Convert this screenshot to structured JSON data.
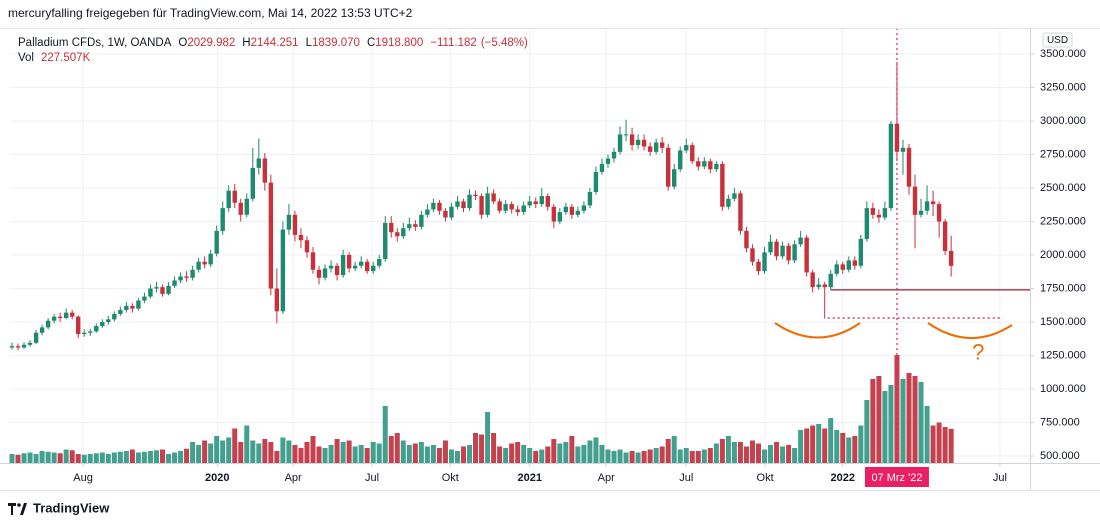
{
  "chart_data": {
    "type": "candlestick",
    "header": "mercuryfalling freigegeben für TradingView.com, Mai 14, 2022 13:53 UTC+2",
    "legend": {
      "symbol": "Palladium CFDs, 1W, OANDA",
      "fields": [
        {
          "key": "O",
          "value": 2029.982,
          "label": "2029.982"
        },
        {
          "key": "H",
          "value": 2144.251,
          "label": "2144.251"
        },
        {
          "key": "L",
          "value": 1839.07,
          "label": "1839.070"
        },
        {
          "key": "C",
          "value": 1918.8,
          "label": "1918.800"
        }
      ],
      "change": {
        "value": -111.182,
        "label": "−111.182"
      },
      "change_pct": {
        "value": -5.48,
        "label": "(−5.48%)"
      },
      "vol_key": "Vol",
      "vol_value": {
        "value": 227507,
        "label": "227.507K"
      }
    },
    "currency": "USD",
    "watermark": "TradingView",
    "up_color": "#1e8a6e",
    "down_color": "#c8303b",
    "volume_up_color": "#43a08f",
    "volume_down_color": "#c4414d",
    "ohlc": [
      [
        1310,
        1345,
        1295,
        1320
      ],
      [
        1320,
        1340,
        1290,
        1310
      ],
      [
        1310,
        1350,
        1300,
        1330
      ],
      [
        1330,
        1365,
        1315,
        1345
      ],
      [
        1345,
        1440,
        1335,
        1420
      ],
      [
        1420,
        1480,
        1400,
        1460
      ],
      [
        1460,
        1530,
        1445,
        1510
      ],
      [
        1510,
        1560,
        1490,
        1540
      ],
      [
        1540,
        1570,
        1500,
        1530
      ],
      [
        1530,
        1600,
        1520,
        1570
      ],
      [
        1570,
        1590,
        1520,
        1540
      ],
      [
        1540,
        1550,
        1380,
        1410
      ],
      [
        1410,
        1445,
        1390,
        1420
      ],
      [
        1420,
        1450,
        1395,
        1430
      ],
      [
        1430,
        1490,
        1420,
        1470
      ],
      [
        1470,
        1520,
        1455,
        1500
      ],
      [
        1500,
        1545,
        1480,
        1520
      ],
      [
        1520,
        1580,
        1505,
        1560
      ],
      [
        1560,
        1615,
        1545,
        1590
      ],
      [
        1590,
        1650,
        1570,
        1620
      ],
      [
        1620,
        1640,
        1570,
        1600
      ],
      [
        1600,
        1680,
        1585,
        1660
      ],
      [
        1660,
        1720,
        1640,
        1690
      ],
      [
        1690,
        1780,
        1675,
        1750
      ],
      [
        1750,
        1800,
        1720,
        1760
      ],
      [
        1760,
        1780,
        1690,
        1710
      ],
      [
        1710,
        1795,
        1700,
        1770
      ],
      [
        1770,
        1840,
        1755,
        1810
      ],
      [
        1810,
        1870,
        1790,
        1840
      ],
      [
        1840,
        1880,
        1800,
        1830
      ],
      [
        1830,
        1920,
        1810,
        1890
      ],
      [
        1890,
        1980,
        1870,
        1950
      ],
      [
        1950,
        1990,
        1900,
        1930
      ],
      [
        1930,
        2040,
        1910,
        2010
      ],
      [
        2010,
        2220,
        1990,
        2180
      ],
      [
        2180,
        2400,
        2150,
        2350
      ],
      [
        2350,
        2520,
        2320,
        2480
      ],
      [
        2480,
        2530,
        2350,
        2390
      ],
      [
        2390,
        2420,
        2250,
        2300
      ],
      [
        2300,
        2460,
        2280,
        2420
      ],
      [
        2420,
        2800,
        2400,
        2650
      ],
      [
        2650,
        2870,
        2600,
        2720
      ],
      [
        2720,
        2760,
        2480,
        2540
      ],
      [
        2540,
        2600,
        1700,
        1750
      ],
      [
        1750,
        1900,
        1490,
        1580
      ],
      [
        1580,
        2250,
        1560,
        2190
      ],
      [
        2190,
        2380,
        2150,
        2300
      ],
      [
        2300,
        2330,
        2100,
        2150
      ],
      [
        2150,
        2200,
        2050,
        2110
      ],
      [
        2110,
        2140,
        1980,
        2020
      ],
      [
        2020,
        2060,
        1860,
        1890
      ],
      [
        1890,
        1920,
        1780,
        1830
      ],
      [
        1830,
        1930,
        1810,
        1900
      ],
      [
        1900,
        1960,
        1870,
        1920
      ],
      [
        1920,
        1940,
        1810,
        1850
      ],
      [
        1850,
        2040,
        1830,
        2000
      ],
      [
        2000,
        2020,
        1870,
        1900
      ],
      [
        1900,
        1950,
        1880,
        1920
      ],
      [
        1920,
        1990,
        1900,
        1950
      ],
      [
        1950,
        1970,
        1860,
        1880
      ],
      [
        1880,
        1950,
        1860,
        1920
      ],
      [
        1920,
        2000,
        1900,
        1970
      ],
      [
        1970,
        2290,
        1950,
        2240
      ],
      [
        2240,
        2290,
        2130,
        2170
      ],
      [
        2170,
        2200,
        2100,
        2140
      ],
      [
        2140,
        2240,
        2120,
        2200
      ],
      [
        2200,
        2280,
        2180,
        2230
      ],
      [
        2230,
        2260,
        2180,
        2210
      ],
      [
        2210,
        2330,
        2190,
        2300
      ],
      [
        2300,
        2380,
        2280,
        2340
      ],
      [
        2340,
        2420,
        2320,
        2390
      ],
      [
        2390,
        2410,
        2300,
        2330
      ],
      [
        2330,
        2350,
        2250,
        2280
      ],
      [
        2280,
        2390,
        2260,
        2360
      ],
      [
        2360,
        2440,
        2340,
        2400
      ],
      [
        2400,
        2420,
        2320,
        2350
      ],
      [
        2350,
        2490,
        2330,
        2450
      ],
      [
        2450,
        2480,
        2410,
        2440
      ],
      [
        2440,
        2460,
        2270,
        2300
      ],
      [
        2300,
        2510,
        2280,
        2460
      ],
      [
        2460,
        2490,
        2380,
        2400
      ],
      [
        2400,
        2420,
        2310,
        2330
      ],
      [
        2330,
        2410,
        2310,
        2380
      ],
      [
        2380,
        2400,
        2310,
        2340
      ],
      [
        2340,
        2370,
        2290,
        2320
      ],
      [
        2320,
        2400,
        2300,
        2370
      ],
      [
        2370,
        2440,
        2350,
        2400
      ],
      [
        2400,
        2430,
        2350,
        2380
      ],
      [
        2380,
        2500,
        2360,
        2440
      ],
      [
        2440,
        2460,
        2330,
        2360
      ],
      [
        2360,
        2380,
        2200,
        2250
      ],
      [
        2250,
        2350,
        2230,
        2320
      ],
      [
        2320,
        2390,
        2300,
        2360
      ],
      [
        2360,
        2380,
        2270,
        2300
      ],
      [
        2300,
        2360,
        2280,
        2330
      ],
      [
        2330,
        2400,
        2310,
        2370
      ],
      [
        2370,
        2500,
        2350,
        2470
      ],
      [
        2470,
        2660,
        2450,
        2620
      ],
      [
        2620,
        2720,
        2600,
        2680
      ],
      [
        2680,
        2750,
        2650,
        2720
      ],
      [
        2720,
        2800,
        2690,
        2770
      ],
      [
        2770,
        2960,
        2750,
        2900
      ],
      [
        2900,
        3010,
        2850,
        2900
      ],
      [
        2900,
        2950,
        2780,
        2820
      ],
      [
        2820,
        2900,
        2790,
        2860
      ],
      [
        2860,
        2900,
        2780,
        2810
      ],
      [
        2810,
        2840,
        2740,
        2770
      ],
      [
        2770,
        2870,
        2750,
        2840
      ],
      [
        2840,
        2880,
        2760,
        2800
      ],
      [
        2800,
        2830,
        2480,
        2510
      ],
      [
        2510,
        2680,
        2490,
        2640
      ],
      [
        2640,
        2810,
        2620,
        2780
      ],
      [
        2780,
        2870,
        2760,
        2820
      ],
      [
        2820,
        2840,
        2680,
        2700
      ],
      [
        2700,
        2730,
        2630,
        2660
      ],
      [
        2660,
        2730,
        2640,
        2700
      ],
      [
        2700,
        2720,
        2610,
        2640
      ],
      [
        2640,
        2700,
        2620,
        2680
      ],
      [
        2680,
        2700,
        2330,
        2360
      ],
      [
        2360,
        2450,
        2340,
        2420
      ],
      [
        2420,
        2500,
        2400,
        2460
      ],
      [
        2460,
        2480,
        2150,
        2180
      ],
      [
        2180,
        2210,
        2020,
        2050
      ],
      [
        2050,
        2080,
        1920,
        1950
      ],
      [
        1950,
        1970,
        1850,
        1880
      ],
      [
        1880,
        2060,
        1860,
        2020
      ],
      [
        2020,
        2150,
        2000,
        2100
      ],
      [
        2100,
        2120,
        1960,
        1990
      ],
      [
        1990,
        2100,
        1970,
        2070
      ],
      [
        2070,
        2090,
        1930,
        1960
      ],
      [
        1960,
        2110,
        1940,
        2080
      ],
      [
        2080,
        2180,
        2060,
        2130
      ],
      [
        2130,
        2150,
        1840,
        1870
      ],
      [
        1870,
        1890,
        1720,
        1760
      ],
      [
        1760,
        1830,
        1740,
        1780
      ],
      [
        1780,
        1800,
        1525,
        1760
      ],
      [
        1760,
        1890,
        1740,
        1860
      ],
      [
        1860,
        1960,
        1840,
        1930
      ],
      [
        1930,
        1950,
        1860,
        1890
      ],
      [
        1890,
        1990,
        1870,
        1960
      ],
      [
        1960,
        1990,
        1890,
        1920
      ],
      [
        1920,
        2150,
        1900,
        2120
      ],
      [
        2120,
        2400,
        2100,
        2350
      ],
      [
        2350,
        2390,
        2270,
        2300
      ],
      [
        2300,
        2340,
        2240,
        2280
      ],
      [
        2280,
        2400,
        2260,
        2350
      ],
      [
        2350,
        3000,
        2330,
        2980
      ],
      [
        2980,
        3440,
        2700,
        2770
      ],
      [
        2770,
        2860,
        2600,
        2800
      ],
      [
        2800,
        2830,
        2450,
        2510
      ],
      [
        2510,
        2600,
        2050,
        2300
      ],
      [
        2300,
        2420,
        2280,
        2330
      ],
      [
        2330,
        2520,
        2300,
        2400
      ],
      [
        2400,
        2480,
        2290,
        2380
      ],
      [
        2380,
        2400,
        2130,
        2250
      ],
      [
        2250,
        2270,
        2000,
        2029.982
      ],
      [
        2029.982,
        2144.251,
        1839.07,
        1918.8
      ]
    ],
    "volume": [
      60000,
      55000,
      65000,
      70000,
      60000,
      80000,
      75000,
      70000,
      65000,
      90000,
      85000,
      60000,
      55000,
      60000,
      65000,
      70000,
      60000,
      70000,
      75000,
      80000,
      90000,
      70000,
      75000,
      80000,
      85000,
      90000,
      60000,
      70000,
      80000,
      95000,
      140000,
      120000,
      150000,
      130000,
      180000,
      150000,
      170000,
      230000,
      140000,
      250000,
      150000,
      130000,
      160000,
      140000,
      80000,
      170000,
      150000,
      120000,
      100000,
      140000,
      180000,
      110000,
      100000,
      120000,
      160000,
      140000,
      150000,
      110000,
      120000,
      100000,
      140000,
      130000,
      380000,
      180000,
      200000,
      150000,
      120000,
      130000,
      140000,
      110000,
      120000,
      100000,
      150000,
      90000,
      80000,
      110000,
      120000,
      200000,
      190000,
      340000,
      200000,
      110000,
      100000,
      130000,
      140000,
      120000,
      100000,
      80000,
      90000,
      110000,
      160000,
      130000,
      140000,
      180000,
      110000,
      120000,
      150000,
      170000,
      120000,
      90000,
      80000,
      90000,
      70000,
      80000,
      70000,
      80000,
      90000,
      100000,
      110000,
      160000,
      180000,
      90000,
      100000,
      80000,
      80000,
      90000,
      100000,
      130000,
      160000,
      180000,
      140000,
      140000,
      110000,
      150000,
      130000,
      90000,
      120000,
      140000,
      110000,
      120000,
      100000,
      220000,
      230000,
      250000,
      260000,
      230000,
      300000,
      220000,
      200000,
      170000,
      180000,
      250000,
      420000,
      560000,
      580000,
      480000,
      520000,
      720000,
      560000,
      600000,
      580000,
      540000,
      380000,
      250000,
      270000,
      240000,
      227507
    ],
    "xlim": [
      -0.33,
      169.1
    ],
    "xticks": [
      {
        "value": 11.8,
        "label": "Aug"
      },
      {
        "value": 34.1,
        "label": "2020"
      },
      {
        "value": 46.7,
        "label": "Apr"
      },
      {
        "value": 59.8,
        "label": "Jul"
      },
      {
        "value": 72.8,
        "label": "Okt"
      },
      {
        "value": 86,
        "label": "2021"
      },
      {
        "value": 98.7,
        "label": "Apr"
      },
      {
        "value": 112,
        "label": "Jul"
      },
      {
        "value": 125.1,
        "label": "Okt"
      },
      {
        "value": 138,
        "label": "2022"
      },
      {
        "value": 164.1,
        "label": "Jul"
      }
    ],
    "ylim": [
      448,
      3694
    ],
    "yticks": [
      {
        "value": 500,
        "label": "500.000"
      },
      {
        "value": 750,
        "label": "750.000"
      },
      {
        "value": 1000,
        "label": "1000.000"
      },
      {
        "value": 1250,
        "label": "1250.000"
      },
      {
        "value": 1500,
        "label": "1500.000"
      },
      {
        "value": 1750,
        "label": "1750.000"
      },
      {
        "value": 2000,
        "label": "2000.000"
      },
      {
        "value": 2250,
        "label": "2250.000"
      },
      {
        "value": 2500,
        "label": "2500.000"
      },
      {
        "value": 2750,
        "label": "2750.000"
      },
      {
        "value": 3000,
        "label": "3000.000"
      },
      {
        "value": 3250,
        "label": "3250.000"
      },
      {
        "value": 3500,
        "label": "3500.000"
      }
    ],
    "grid": true,
    "crosshair": {
      "value": 147,
      "label": "07 Mrz '22",
      "color": "#e91e63"
    },
    "levels": [
      {
        "value": 1740,
        "from": 136,
        "to": 169.1,
        "color": "#8e1f35",
        "style": "solid"
      },
      {
        "value": 1530,
        "from": 135.5,
        "to": 164.6,
        "color": "#c2185b",
        "style": "dotted"
      }
    ],
    "annotation": {
      "text": "?",
      "x": 160.5,
      "y": 1265,
      "color": "#ef6c00"
    }
  }
}
